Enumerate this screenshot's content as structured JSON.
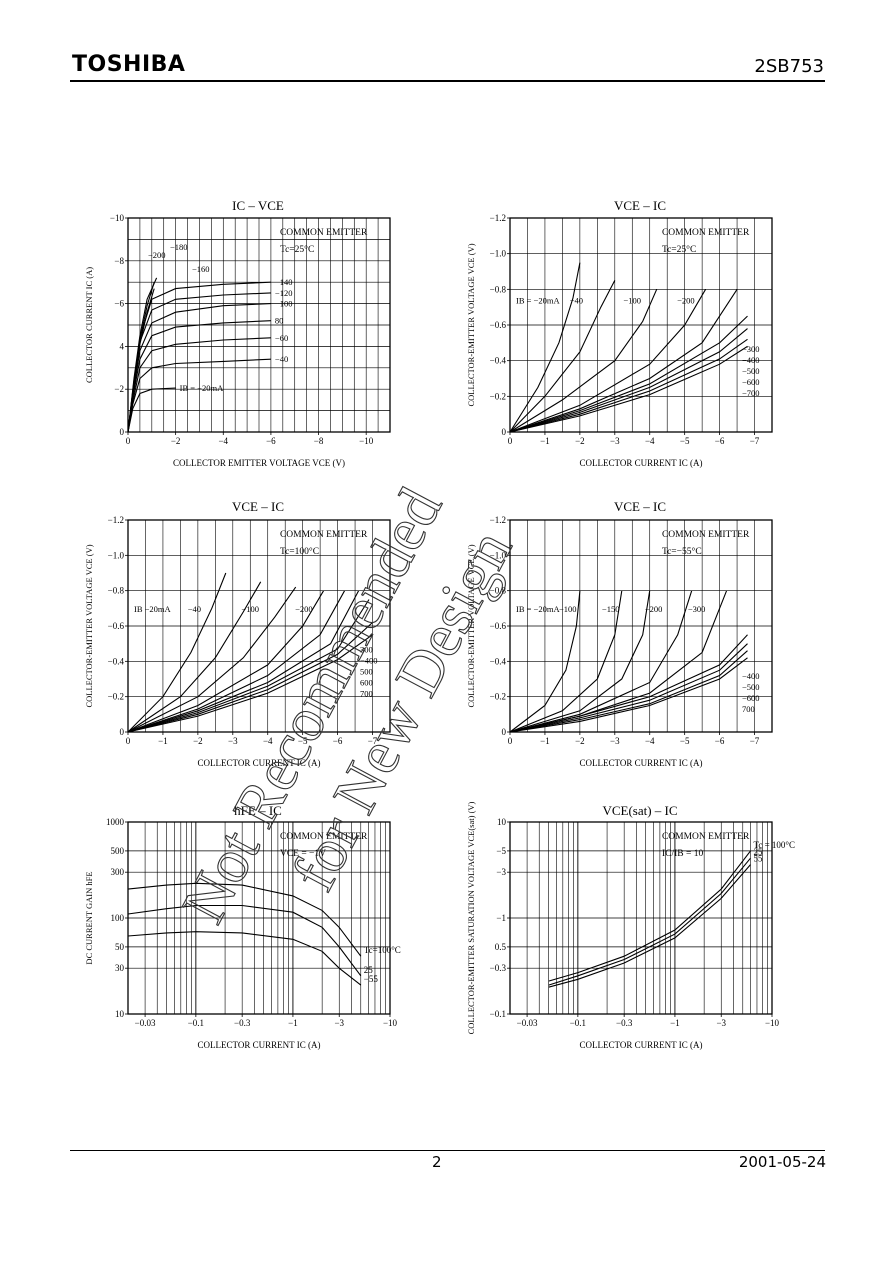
{
  "header": {
    "brand": "TOSHIBA",
    "part_number": "2SB753"
  },
  "footer": {
    "page": "2",
    "date": "2001-05-24"
  },
  "watermark": {
    "lines": [
      "Not Recommended",
      "for New Design"
    ]
  },
  "chart_data": [
    {
      "id": "ic_vce",
      "type": "line",
      "title": "IC – VCE",
      "xlabel": "COLLECTOR EMITTER VOLTAGE   VCE   (V)",
      "ylabel": "COLLECTOR CURRENT   IC   (A)",
      "xlim": [
        0,
        -11
      ],
      "ylim": [
        0,
        -10
      ],
      "xticks": [
        0,
        -2,
        -4,
        -6,
        -8,
        -10
      ],
      "yticks": [
        0,
        -2,
        -4,
        -6,
        -8,
        -10
      ],
      "xtick_labels": [
        "0",
        "−2",
        "−4",
        "−6",
        "−8",
        "−10"
      ],
      "ytick_labels": [
        "0",
        "−2",
        "4",
        "−6",
        "−8",
        "−10"
      ],
      "annotations": [
        "COMMON EMITTER",
        "Tc=25°C"
      ],
      "series_labels": [
        "−200",
        "−180",
        "−160",
        "−140",
        "−120",
        "−100",
        "80",
        "−60",
        "−40",
        "IB = −20mA"
      ],
      "series": [
        {
          "x": [
            0,
            -0.25,
            -0.5,
            -0.8,
            -1.2
          ],
          "y": [
            0,
            -2.5,
            -4.5,
            -6.2,
            -7.2
          ]
        },
        {
          "x": [
            0,
            -0.25,
            -0.5,
            -0.8,
            -1.1
          ],
          "y": [
            0,
            -2.4,
            -4.3,
            -5.9,
            -7.0
          ]
        },
        {
          "x": [
            0,
            -0.25,
            -0.5,
            -0.8,
            -1.1
          ],
          "y": [
            0,
            -2.3,
            -4.1,
            -5.6,
            -6.7
          ]
        },
        {
          "x": [
            0,
            -0.2,
            -0.5,
            -1,
            -2,
            -4,
            -6
          ],
          "y": [
            0,
            -1.9,
            -4.4,
            -6.2,
            -6.7,
            -6.9,
            -7.0
          ]
        },
        {
          "x": [
            0,
            -0.2,
            -0.5,
            -1,
            -2,
            -4,
            -6
          ],
          "y": [
            0,
            -1.8,
            -4.2,
            -5.7,
            -6.2,
            -6.4,
            -6.5
          ]
        },
        {
          "x": [
            0,
            -0.2,
            -0.5,
            -1,
            -2,
            -4,
            -6
          ],
          "y": [
            0,
            -1.7,
            -3.8,
            -5.1,
            -5.6,
            -5.9,
            -6.0
          ]
        },
        {
          "x": [
            0,
            -0.2,
            -0.5,
            -1,
            -2,
            -4,
            -6
          ],
          "y": [
            0,
            -1.6,
            -3.4,
            -4.5,
            -4.9,
            -5.1,
            -5.2
          ]
        },
        {
          "x": [
            0,
            -0.2,
            -0.5,
            -1,
            -2,
            -4,
            -6
          ],
          "y": [
            0,
            -1.4,
            -3.0,
            -3.8,
            -4.1,
            -4.3,
            -4.4
          ]
        },
        {
          "x": [
            0,
            -0.2,
            -0.5,
            -1,
            -2,
            -4,
            -6
          ],
          "y": [
            0,
            -1.3,
            -2.5,
            -3.0,
            -3.2,
            -3.3,
            -3.4
          ]
        },
        {
          "x": [
            0,
            -0.2,
            -0.5,
            -1,
            -2
          ],
          "y": [
            0,
            -1.1,
            -1.8,
            -2.0,
            -2.05
          ]
        }
      ]
    },
    {
      "id": "vce_ic_25",
      "type": "line",
      "title": "VCE – IC",
      "xlabel": "COLLECTOR CURRENT   IC   (A)",
      "ylabel": "COLLECTOR-EMITTER VOLTAGE   VCE   (V)",
      "xlim": [
        0,
        -7.5
      ],
      "ylim": [
        0,
        -1.2
      ],
      "xticks": [
        0,
        -1,
        -2,
        -3,
        -4,
        -5,
        -6,
        -7
      ],
      "yticks": [
        0,
        -0.2,
        -0.4,
        -0.6,
        -0.8,
        -1.0,
        -1.2
      ],
      "xtick_labels": [
        "0",
        "−1",
        "−2",
        "−3",
        "−4",
        "−5",
        "−6",
        "−7"
      ],
      "ytick_labels": [
        "0",
        "−0.2",
        "−0.4",
        "−0.6",
        "−0.8",
        "−1.0",
        "−1.2"
      ],
      "annotations": [
        "COMMON EMITTER",
        "Tc=25°C"
      ],
      "series_labels": [
        "IB = −20mA",
        "−40",
        "−100",
        "−200",
        "−300",
        "−400",
        "−500",
        "−600",
        "−700"
      ],
      "series": [
        {
          "x": [
            0,
            -0.8,
            -1.4,
            -1.8,
            -2.0
          ],
          "y": [
            0,
            -0.25,
            -0.5,
            -0.75,
            -0.95
          ]
        },
        {
          "x": [
            0,
            -1,
            -2,
            -2.6,
            -3.0
          ],
          "y": [
            0,
            -0.2,
            -0.45,
            -0.7,
            -0.85
          ]
        },
        {
          "x": [
            0,
            -1.5,
            -3,
            -3.8,
            -4.2
          ],
          "y": [
            0,
            -0.18,
            -0.4,
            -0.62,
            -0.8
          ]
        },
        {
          "x": [
            0,
            -2,
            -4,
            -5,
            -5.6
          ],
          "y": [
            0,
            -0.15,
            -0.38,
            -0.6,
            -0.8
          ]
        },
        {
          "x": [
            0,
            -2,
            -4,
            -5.5,
            -6.5
          ],
          "y": [
            0,
            -0.13,
            -0.3,
            -0.5,
            -0.8
          ]
        },
        {
          "x": [
            0,
            -2,
            -4,
            -6,
            -6.8
          ],
          "y": [
            0,
            -0.12,
            -0.27,
            -0.5,
            -0.65
          ]
        },
        {
          "x": [
            0,
            -2,
            -4,
            -6,
            -6.8
          ],
          "y": [
            0,
            -0.11,
            -0.25,
            -0.45,
            -0.58
          ]
        },
        {
          "x": [
            0,
            -2,
            -4,
            -6,
            -6.8
          ],
          "y": [
            0,
            -0.1,
            -0.23,
            -0.41,
            -0.52
          ]
        },
        {
          "x": [
            0,
            -2,
            -4,
            -6,
            -6.8
          ],
          "y": [
            0,
            -0.09,
            -0.21,
            -0.38,
            -0.48
          ]
        }
      ]
    },
    {
      "id": "vce_ic_100",
      "type": "line",
      "title": "VCE – IC",
      "xlabel": "COLLECTOR CURRENT   IC   (A)",
      "ylabel": "COLLECTOR-EMITTER VOLTAGE   VCE   (V)",
      "xlim": [
        0,
        -7.5
      ],
      "ylim": [
        0,
        -1.2
      ],
      "xticks": [
        0,
        -1,
        -2,
        -3,
        -4,
        -5,
        -6,
        -7
      ],
      "yticks": [
        0,
        -0.2,
        -0.4,
        -0.6,
        -0.8,
        -1.0,
        -1.2
      ],
      "xtick_labels": [
        "0",
        "−1",
        "−2",
        "−3",
        "−4",
        "−5",
        "−6",
        "−7"
      ],
      "ytick_labels": [
        "0",
        "−0.2",
        "−0.4",
        "−0.6",
        "−0.8",
        "−1.0",
        "−1.2"
      ],
      "annotations": [
        "COMMON EMITTER",
        "Tc=100°C"
      ],
      "series_labels": [
        "IB  −20mA",
        "−40",
        "−100",
        "−200",
        "300",
        "−400",
        "500",
        "600",
        "700"
      ],
      "series": [
        {
          "x": [
            0,
            -1,
            -1.8,
            -2.4,
            -2.8
          ],
          "y": [
            0,
            -0.2,
            -0.45,
            -0.7,
            -0.9
          ]
        },
        {
          "x": [
            0,
            -1.5,
            -2.5,
            -3.3,
            -3.8
          ],
          "y": [
            0,
            -0.2,
            -0.42,
            -0.68,
            -0.85
          ]
        },
        {
          "x": [
            0,
            -2,
            -3.3,
            -4.2,
            -4.8
          ],
          "y": [
            0,
            -0.2,
            -0.42,
            -0.65,
            -0.82
          ]
        },
        {
          "x": [
            0,
            -2,
            -4,
            -5,
            -5.6
          ],
          "y": [
            0,
            -0.15,
            -0.38,
            -0.6,
            -0.8
          ]
        },
        {
          "x": [
            0,
            -2,
            -4,
            -5.5,
            -6.2
          ],
          "y": [
            0,
            -0.13,
            -0.32,
            -0.55,
            -0.8
          ]
        },
        {
          "x": [
            0,
            -2,
            -4,
            -5.8,
            -6.6
          ],
          "y": [
            0,
            -0.12,
            -0.28,
            -0.5,
            -0.8
          ]
        },
        {
          "x": [
            0,
            -2,
            -4,
            -6,
            -6.9
          ],
          "y": [
            0,
            -0.11,
            -0.26,
            -0.47,
            -0.75
          ]
        },
        {
          "x": [
            0,
            -2,
            -4,
            -6,
            -7.0
          ],
          "y": [
            0,
            -0.1,
            -0.24,
            -0.44,
            -0.62
          ]
        },
        {
          "x": [
            0,
            -2,
            -4,
            -6,
            -7.0
          ],
          "y": [
            0,
            -0.09,
            -0.22,
            -0.41,
            -0.55
          ]
        }
      ]
    },
    {
      "id": "vce_ic_m55",
      "type": "line",
      "title": "VCE – IC",
      "xlabel": "COLLECTOR CURRENT   IC   (A)",
      "ylabel": "COLLECTOR-EMITTER VOLTAGE   VCE   (V)",
      "xlim": [
        0,
        -7.5
      ],
      "ylim": [
        0,
        -1.2
      ],
      "xticks": [
        0,
        -1,
        -2,
        -3,
        -4,
        -5,
        -6,
        -7
      ],
      "yticks": [
        0,
        -0.2,
        -0.4,
        -0.6,
        -0.8,
        -1.0,
        -1.2
      ],
      "xtick_labels": [
        "0",
        "−1",
        "−2",
        "−3",
        "−4",
        "−5",
        "−6",
        "−7"
      ],
      "ytick_labels": [
        "0",
        "−0.2",
        "−0.4",
        "−0.6",
        "−0.8",
        "−1.0",
        "−1.2"
      ],
      "annotations": [
        "COMMON EMITTER",
        "Tc=−55°C"
      ],
      "series_labels": [
        "IB = −20mA",
        "−100",
        "−150",
        "−200",
        "−300",
        "−400",
        "−500",
        "−600",
        "700"
      ],
      "series": [
        {
          "x": [
            0,
            -1,
            -1.6,
            -1.9,
            -2.0
          ],
          "y": [
            0,
            -0.15,
            -0.35,
            -0.6,
            -0.8
          ]
        },
        {
          "x": [
            0,
            -1.5,
            -2.5,
            -3,
            -3.2
          ],
          "y": [
            0,
            -0.12,
            -0.3,
            -0.55,
            -0.8
          ]
        },
        {
          "x": [
            0,
            -2,
            -3.2,
            -3.8,
            -4.0
          ],
          "y": [
            0,
            -0.12,
            -0.3,
            -0.55,
            -0.8
          ]
        },
        {
          "x": [
            0,
            -2,
            -4,
            -4.8,
            -5.2
          ],
          "y": [
            0,
            -0.1,
            -0.28,
            -0.55,
            -0.8
          ]
        },
        {
          "x": [
            0,
            -2,
            -4,
            -5.5,
            -6.2
          ],
          "y": [
            0,
            -0.09,
            -0.22,
            -0.45,
            -0.8
          ]
        },
        {
          "x": [
            0,
            -2,
            -4,
            -6,
            -6.8
          ],
          "y": [
            0,
            -0.09,
            -0.2,
            -0.38,
            -0.55
          ]
        },
        {
          "x": [
            0,
            -2,
            -4,
            -6,
            -6.8
          ],
          "y": [
            0,
            -0.08,
            -0.18,
            -0.35,
            -0.5
          ]
        },
        {
          "x": [
            0,
            -2,
            -4,
            -6,
            -6.8
          ],
          "y": [
            0,
            -0.07,
            -0.16,
            -0.32,
            -0.46
          ]
        },
        {
          "x": [
            0,
            -2,
            -4,
            -6,
            -6.8
          ],
          "y": [
            0,
            -0.06,
            -0.15,
            -0.3,
            -0.42
          ]
        }
      ]
    },
    {
      "id": "hfe_ic",
      "type": "line",
      "log_x": true,
      "log_y": true,
      "title": "hFE – IC",
      "xlabel": "COLLECTOR CURRENT   IC   (A)",
      "ylabel": "DC CURRENT GAIN   hFE",
      "xlim": [
        -0.02,
        -10
      ],
      "ylim": [
        10,
        1000
      ],
      "xticks": [
        -0.03,
        -0.1,
        -0.3,
        -1,
        -3,
        -10
      ],
      "yticks": [
        10,
        30,
        50,
        100,
        300,
        500,
        1000
      ],
      "xtick_labels": [
        "−0.03",
        "−0.1",
        "−0.3",
        "−1",
        "−3",
        "−10"
      ],
      "ytick_labels": [
        "10",
        "30",
        "50",
        "100",
        "300",
        "500",
        "1000"
      ],
      "annotations": [
        "COMMON EMITTER",
        "VCE = −1V"
      ],
      "series": [
        {
          "name": "Tc=100°C",
          "x": [
            -0.02,
            -0.05,
            -0.1,
            -0.3,
            -1,
            -2,
            -3,
            -5
          ],
          "y": [
            200,
            220,
            230,
            220,
            170,
            120,
            80,
            40
          ]
        },
        {
          "name": "25",
          "x": [
            -0.02,
            -0.05,
            -0.1,
            -0.3,
            -1,
            -2,
            -3,
            -5
          ],
          "y": [
            110,
            125,
            135,
            135,
            115,
            80,
            50,
            25
          ]
        },
        {
          "name": "−55",
          "x": [
            -0.02,
            -0.05,
            -0.1,
            -0.3,
            -1,
            -2,
            -3,
            -5
          ],
          "y": [
            65,
            70,
            72,
            70,
            60,
            45,
            30,
            20
          ]
        }
      ]
    },
    {
      "id": "vcesat_ic",
      "type": "line",
      "log_x": true,
      "log_y": true,
      "title": "VCE(sat) – IC",
      "xlabel": "COLLECTOR CURRENT   IC   (A)",
      "ylabel": "COLLECTOR-EMITTER SATURATION VOLTAGE   VCE(sat)   (V)",
      "xlim": [
        -0.02,
        -10
      ],
      "ylim": [
        -0.1,
        -10
      ],
      "xticks": [
        -0.03,
        -0.1,
        -0.3,
        -1,
        -3,
        -10
      ],
      "yticks": [
        -0.1,
        -0.3,
        -0.5,
        -1,
        -3,
        -5,
        -10
      ],
      "xtick_labels": [
        "−0.03",
        "−0.1",
        "−0.3",
        "−1",
        "−3",
        "−10"
      ],
      "ytick_labels": [
        "−0.1",
        "−0.3",
        "0.5",
        "−1",
        "−3",
        "−5",
        "10"
      ],
      "annotations": [
        "COMMON EMITTER",
        "IC/IB = 10"
      ],
      "series": [
        {
          "name": "Tc = 100°C",
          "x": [
            -0.05,
            -0.1,
            -0.3,
            -1,
            -3,
            -6
          ],
          "y": [
            -0.22,
            -0.27,
            -0.4,
            -0.75,
            -2.0,
            -5.0
          ]
        },
        {
          "name": "25",
          "x": [
            -0.05,
            -0.1,
            -0.3,
            -1,
            -3,
            -6
          ],
          "y": [
            -0.2,
            -0.25,
            -0.37,
            -0.68,
            -1.8,
            -4.2
          ]
        },
        {
          "name": "55",
          "x": [
            -0.05,
            -0.1,
            -0.3,
            -1,
            -3,
            -6
          ],
          "y": [
            -0.19,
            -0.23,
            -0.34,
            -0.62,
            -1.6,
            -3.6
          ]
        }
      ]
    }
  ]
}
